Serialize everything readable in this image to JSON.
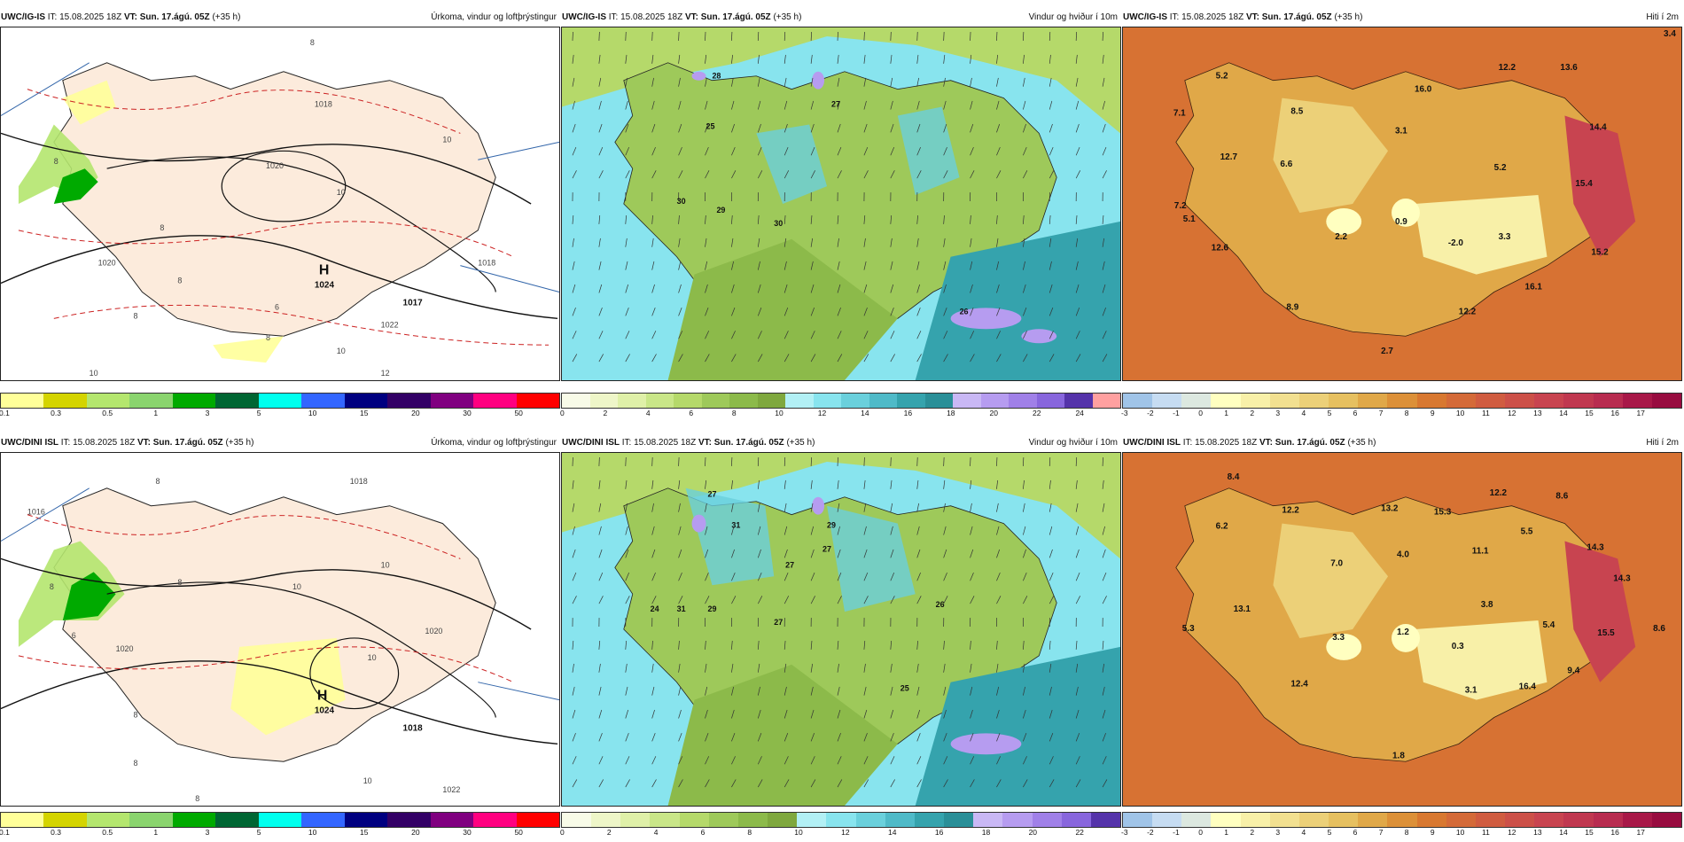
{
  "header_text": {
    "top": {
      "model": "UWC/IG-IS",
      "it_label": "IT:",
      "it_value": "15.08.2025 18Z",
      "vt_label": "VT:",
      "vt_value": "Sun. 17.ágú. 05Z",
      "lead": "(+35 h)"
    },
    "bottom": {
      "model": "UWC/DINI ISL",
      "it_label": "IT:",
      "it_value": "15.08.2025 18Z",
      "vt_label": "VT:",
      "vt_value": "Sun. 17.ágú. 05Z",
      "lead": "(+35 h)"
    }
  },
  "panel_titles": {
    "precip": "Úrkoma, vindur og loftþrýstingur",
    "wind": "Vindur og hviður í 10m",
    "temp": "Hiti í 2m"
  },
  "colorbars": {
    "precip": {
      "colors": [
        "#ffff99",
        "#d4d400",
        "#b4e66e",
        "#8ad46e",
        "#00aa00",
        "#006633",
        "#00ffee",
        "#3366ff",
        "#000080",
        "#330066",
        "#800080",
        "#ff0080",
        "#ff0000"
      ],
      "labels": [
        "0.1",
        "0.3",
        "0.5",
        "1",
        "3",
        "5",
        "10",
        "15",
        "20",
        "30",
        "50"
      ]
    },
    "wind_top": {
      "colors": [
        "#f8fbe8",
        "#eef6c8",
        "#dff0a8",
        "#c9e688",
        "#b5d96a",
        "#9ec95a",
        "#8cba4a",
        "#7fa83e",
        "#b2f0f5",
        "#88e4ee",
        "#6ad0dc",
        "#4fbac8",
        "#35a3ad",
        "#2a8f98",
        "#c9b8f5",
        "#b69cf0",
        "#a080e8",
        "#8866dd",
        "#5533aa",
        "#ffa0a0"
      ],
      "labels": [
        "0",
        "2",
        "4",
        "6",
        "8",
        "10",
        "12",
        "14",
        "16",
        "18",
        "20",
        "22",
        "24"
      ]
    },
    "wind_bottom": {
      "colors": [
        "#f8fbe8",
        "#eef6c8",
        "#dff0a8",
        "#c9e688",
        "#b5d96a",
        "#9ec95a",
        "#8cba4a",
        "#7fa83e",
        "#b2f0f5",
        "#88e4ee",
        "#6ad0dc",
        "#4fbac8",
        "#35a3ad",
        "#2a8f98",
        "#c9b8f5",
        "#b69cf0",
        "#a080e8",
        "#8866dd",
        "#5533aa"
      ],
      "labels": [
        "0",
        "2",
        "4",
        "6",
        "8",
        "10",
        "12",
        "14",
        "16",
        "18",
        "20",
        "22"
      ]
    },
    "temp": {
      "colors": [
        "#a0c4e8",
        "#c6dcf2",
        "#dce8e0",
        "#ffffc0",
        "#f8f0a8",
        "#f2e090",
        "#ecd078",
        "#e6c060",
        "#e0a848",
        "#dc9038",
        "#d87830",
        "#d46a38",
        "#d05c40",
        "#cc5048",
        "#c84450",
        "#c03850",
        "#b82c50",
        "#a81848",
        "#980c40"
      ],
      "labels": [
        "-3",
        "-2",
        "-1",
        "0",
        "1",
        "2",
        "3",
        "4",
        "5",
        "6",
        "7",
        "8",
        "9",
        "10",
        "11",
        "12",
        "13",
        "14",
        "15",
        "16",
        "17"
      ]
    }
  },
  "map_labels": {
    "precip_top": {
      "high_letter": "H",
      "high_value": "1024",
      "low_value": "1017",
      "isobars": [
        "1018",
        "1020",
        "1020",
        "1018",
        "1022"
      ],
      "precip_ticks": [
        "8",
        "8",
        "8",
        "8",
        "10",
        "10",
        "10",
        "12",
        "8",
        "8",
        "10",
        "6"
      ]
    },
    "precip_bottom": {
      "high_letter": "H",
      "high_value": "1024",
      "low_value": "1018",
      "isobars": [
        "1016",
        "1018",
        "1020",
        "1020",
        "1022"
      ],
      "precip_ticks": [
        "8",
        "8",
        "8",
        "8",
        "10",
        "10",
        "10",
        "10",
        "8",
        "8",
        "6"
      ]
    },
    "wind_top_gusts": [
      "28",
      "27",
      "25",
      "30",
      "29",
      "30",
      "26"
    ],
    "wind_bottom_gusts": [
      "27",
      "31",
      "29",
      "27",
      "27",
      "24",
      "31",
      "29",
      "27",
      "26",
      "25"
    ],
    "temp_top": [
      "5.2",
      "12.2",
      "13.6",
      "7.1",
      "8.5",
      "16.0",
      "3.1",
      "14.4",
      "12.7",
      "6.6",
      "5.2",
      "15.4",
      "7.2",
      "5.1",
      "2.2",
      "0.9",
      "-2.0",
      "3.3",
      "12.6",
      "15.2",
      "16.1",
      "8.9",
      "12.2",
      "2.7",
      "3.4"
    ],
    "temp_bottom": [
      "8.4",
      "12.2",
      "8.6",
      "12.2",
      "6.2",
      "13.2",
      "15.3",
      "5.5",
      "14.3",
      "7.0",
      "4.0",
      "11.1",
      "14.3",
      "13.1",
      "3.8",
      "5.3",
      "3.3",
      "1.2",
      "0.3",
      "5.4",
      "15.5",
      "8.6",
      "12.4",
      "16.4",
      "9.4",
      "3.1",
      "1.8"
    ]
  }
}
